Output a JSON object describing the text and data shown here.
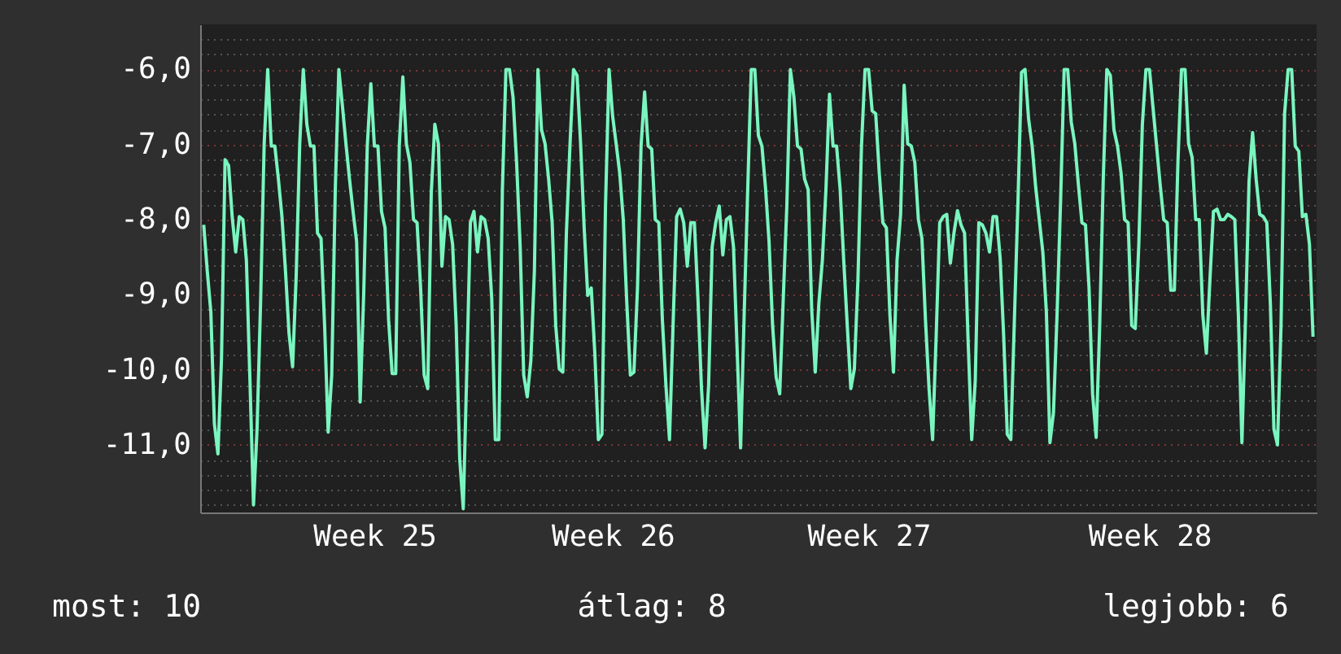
{
  "chart_data": {
    "type": "line",
    "color": "#7af5bf",
    "grid": "y",
    "line_style": "solid",
    "marker": "none",
    "categories": [
      null,
      null,
      null,
      null,
      null,
      null,
      null,
      null,
      null,
      null,
      null,
      null,
      null,
      null,
      null,
      null,
      null,
      null,
      null,
      null,
      null,
      null,
      null,
      null,
      null,
      null,
      null,
      null,
      null,
      null,
      null,
      null,
      null,
      null,
      null,
      null,
      null,
      null,
      null,
      null,
      null,
      null,
      null,
      null,
      null,
      null,
      null,
      null,
      "Week 25",
      null,
      null,
      null,
      null,
      null,
      null,
      null,
      null,
      null,
      null,
      null,
      null,
      null,
      null,
      null,
      null,
      null,
      null,
      null,
      null,
      null,
      null,
      null,
      null,
      null,
      null,
      null,
      null,
      null,
      null,
      null,
      null,
      null,
      null,
      null,
      null,
      null,
      null,
      null,
      null,
      null,
      null,
      null,
      null,
      null,
      null,
      null,
      null,
      null,
      null,
      null,
      null,
      null,
      null,
      null,
      null,
      null,
      null,
      null,
      null,
      null,
      null,
      null,
      null,
      null,
      null,
      "Week 26",
      null,
      null,
      null,
      null,
      null,
      null,
      null,
      null,
      null,
      null,
      null,
      null,
      null,
      null,
      null,
      null,
      null,
      null,
      null,
      null,
      null,
      null,
      null,
      null,
      null,
      null,
      null,
      null,
      null,
      null,
      null,
      null,
      null,
      null,
      null,
      null,
      null,
      null,
      null,
      null,
      null,
      null,
      null,
      null,
      null,
      null,
      null,
      null,
      null,
      null,
      null,
      null,
      null,
      null,
      null,
      null,
      null,
      null,
      null,
      null,
      null,
      null,
      null,
      null,
      null,
      null,
      null,
      null,
      null,
      null,
      null,
      "Week 27",
      null,
      null,
      null,
      null,
      null,
      null,
      null,
      null,
      null,
      null,
      null,
      null,
      null,
      null,
      null,
      null,
      null,
      null,
      null,
      null,
      null,
      null,
      null,
      null,
      null,
      null,
      null,
      null,
      null,
      null,
      null,
      null,
      null,
      null,
      null,
      null,
      null,
      null,
      null,
      null,
      null,
      null,
      null,
      null,
      null,
      null,
      null,
      null,
      null,
      null,
      null,
      null,
      null,
      null,
      null,
      null,
      null,
      null,
      null,
      null,
      null,
      null,
      null,
      null,
      null,
      null,
      null,
      null,
      null,
      null,
      null,
      null,
      null,
      null,
      null,
      null,
      null,
      null,
      "Week 28",
      null,
      null,
      null,
      null,
      null,
      null,
      null,
      null,
      null,
      null,
      null,
      null,
      null,
      null,
      null,
      null,
      null,
      null,
      null,
      null,
      null,
      null,
      null,
      null,
      null,
      null,
      null,
      null,
      null,
      null,
      null,
      null,
      null,
      null,
      null,
      null,
      null,
      null,
      null,
      null,
      null,
      null,
      null,
      null,
      null,
      null
    ],
    "ylim": [
      -11.9,
      -5.4
    ],
    "yticks": [
      {
        "value": -5.6,
        "label": null
      },
      {
        "value": -5.8,
        "label": null
      },
      {
        "value": -6,
        "label": "-6,0"
      },
      {
        "value": -6.2,
        "label": null
      },
      {
        "value": -6.4,
        "label": null
      },
      {
        "value": -6.6,
        "label": null
      },
      {
        "value": -6.8,
        "label": null
      },
      {
        "value": -7,
        "label": "-7,0"
      },
      {
        "value": -7.2,
        "label": null
      },
      {
        "value": -7.4,
        "label": null
      },
      {
        "value": -7.6,
        "label": null
      },
      {
        "value": -7.8,
        "label": null
      },
      {
        "value": -8,
        "label": "-8,0"
      },
      {
        "value": -8.2,
        "label": null
      },
      {
        "value": -8.4,
        "label": null
      },
      {
        "value": -8.6,
        "label": null
      },
      {
        "value": -8.8,
        "label": null
      },
      {
        "value": -9,
        "label": "-9,0"
      },
      {
        "value": -9.2,
        "label": null
      },
      {
        "value": -9.4,
        "label": null
      },
      {
        "value": -9.6,
        "label": null
      },
      {
        "value": -9.8,
        "label": null
      },
      {
        "value": -10,
        "label": "-10,0"
      },
      {
        "value": -10.2,
        "label": null
      },
      {
        "value": -10.4,
        "label": null
      },
      {
        "value": -10.6,
        "label": null
      },
      {
        "value": -10.8,
        "label": null
      },
      {
        "value": -11,
        "label": "-11,0"
      },
      {
        "value": -11.2,
        "label": null
      },
      {
        "value": -11.4,
        "label": null
      },
      {
        "value": -11.6,
        "label": null
      },
      {
        "value": -11.8,
        "label": null
      }
    ],
    "values": [
      -8.07,
      -8.69,
      -9.23,
      -10.72,
      -11.12,
      -9.85,
      -7.2,
      -7.28,
      -7.96,
      -8.43,
      -7.96,
      -8.0,
      -8.54,
      -10.14,
      -11.8,
      -10.79,
      -9.09,
      -6.99,
      -6.0,
      -7.02,
      -7.02,
      -7.46,
      -7.96,
      -8.69,
      -9.52,
      -9.96,
      -8.76,
      -6.99,
      -6.0,
      -6.73,
      -7.02,
      -7.02,
      -8.18,
      -8.25,
      -9.41,
      -10.83,
      -10.07,
      -7.6,
      -6.0,
      -6.48,
      -6.99,
      -7.46,
      -7.89,
      -8.29,
      -10.43,
      -8.98,
      -7.02,
      -6.19,
      -7.02,
      -7.02,
      -7.89,
      -8.11,
      -9.34,
      -10.05,
      -10.05,
      -7.02,
      -6.1,
      -6.99,
      -7.24,
      -8.0,
      -8.04,
      -8.91,
      -10.07,
      -10.25,
      -7.64,
      -6.73,
      -6.99,
      -8.62,
      -7.96,
      -8.0,
      -8.33,
      -9.41,
      -11.19,
      -11.85,
      -9.99,
      -8.04,
      -7.89,
      -8.43,
      -7.96,
      -8.0,
      -8.25,
      -9.05,
      -10.93,
      -10.93,
      -7.6,
      -6.0,
      -6.0,
      -6.37,
      -7.24,
      -8.36,
      -10.07,
      -10.36,
      -9.88,
      -8.69,
      -6.0,
      -6.8,
      -6.99,
      -7.46,
      -8.04,
      -9.41,
      -9.99,
      -10.03,
      -8.18,
      -7.02,
      -6.0,
      -6.08,
      -6.99,
      -8.11,
      -9.01,
      -8.91,
      -9.78,
      -10.93,
      -10.86,
      -7.82,
      -6.0,
      -6.62,
      -6.99,
      -7.38,
      -8.0,
      -9.12,
      -10.07,
      -10.03,
      -8.91,
      -7.02,
      -6.3,
      -7.02,
      -7.06,
      -8.0,
      -8.04,
      -9.34,
      -10.21,
      -10.93,
      -9.41,
      -7.96,
      -7.86,
      -8.04,
      -8.62,
      -8.04,
      -8.04,
      -9.05,
      -10.25,
      -11.04,
      -10.21,
      -8.36,
      -8.04,
      -7.82,
      -8.47,
      -8.0,
      -7.96,
      -8.36,
      -9.7,
      -11.04,
      -9.27,
      -7.6,
      -6.0,
      -6.0,
      -6.88,
      -7.02,
      -7.57,
      -8.29,
      -9.41,
      -10.1,
      -10.32,
      -9.05,
      -7.82,
      -6.0,
      -6.37,
      -7.02,
      -7.06,
      -7.46,
      -7.6,
      -9.2,
      -10.03,
      -9.12,
      -8.54,
      -7.6,
      -6.33,
      -7.02,
      -7.02,
      -7.6,
      -8.54,
      -9.41,
      -10.25,
      -9.99,
      -8.8,
      -7.02,
      -6.0,
      -6.0,
      -6.55,
      -6.59,
      -7.38,
      -8.04,
      -8.11,
      -9.27,
      -10.03,
      -8.54,
      -7.93,
      -6.21,
      -6.99,
      -7.02,
      -7.24,
      -8.0,
      -8.25,
      -9.34,
      -10.25,
      -10.93,
      -9.56,
      -8.04,
      -7.96,
      -7.93,
      -8.58,
      -8.18,
      -7.88,
      -8.07,
      -8.18,
      -9.63,
      -10.93,
      -10.14,
      -8.04,
      -8.07,
      -8.18,
      -8.43,
      -7.96,
      -7.96,
      -8.51,
      -9.56,
      -10.86,
      -10.93,
      -9.34,
      -7.78,
      -6.04,
      -6.0,
      -6.66,
      -7.02,
      -7.57,
      -8.0,
      -8.43,
      -9.23,
      -10.97,
      -10.57,
      -9.27,
      -7.75,
      -6.0,
      -6.0,
      -6.7,
      -6.99,
      -7.53,
      -8.04,
      -8.07,
      -8.91,
      -10.32,
      -10.9,
      -9.41,
      -7.46,
      -6.0,
      -6.08,
      -6.8,
      -7.02,
      -7.38,
      -8.0,
      -8.04,
      -9.41,
      -9.45,
      -8.33,
      -6.73,
      -6.0,
      -6.0,
      -6.51,
      -7.02,
      -7.53,
      -8.0,
      -8.04,
      -8.94,
      -8.94,
      -7.24,
      -6.0,
      -6.0,
      -6.99,
      -7.17,
      -8.0,
      -8.0,
      -9.27,
      -9.78,
      -8.8,
      -7.89,
      -7.86,
      -8.0,
      -8.0,
      -7.93,
      -7.96,
      -8.0,
      -9.27,
      -10.97,
      -9.34,
      -7.49,
      -6.84,
      -7.46,
      -7.93,
      -7.96,
      -8.04,
      -9.12,
      -10.79,
      -11.0,
      -9.41,
      -6.59,
      -6.0,
      -6.0,
      -7.02,
      -7.09,
      -7.96,
      -7.93,
      -8.33,
      -9.56
    ],
    "annotations": [
      "most: 10",
      "átlag: 8",
      "legjobb: 6"
    ]
  }
}
